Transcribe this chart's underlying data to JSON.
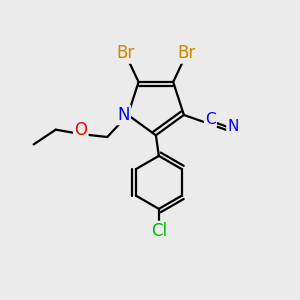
{
  "bg_color": "#ebebeb",
  "atom_colors": {
    "Br": "#cc8800",
    "N": "#0000ff",
    "O": "#ff0000",
    "Cl": "#00bb00",
    "C": "#000000"
  },
  "bond_color": "#000000",
  "bond_width": 1.6,
  "figsize": [
    3.0,
    3.0
  ],
  "dpi": 100
}
